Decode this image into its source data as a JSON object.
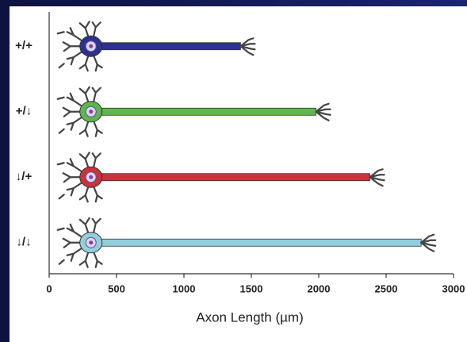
{
  "chart_data": {
    "type": "neuron-bar",
    "categories": [
      "+/+",
      "+/↓",
      "↓/+",
      "↓/↓"
    ],
    "series": [
      {
        "name": null,
        "values": [
          1420,
          1980,
          2380,
          2760
        ],
        "colors": [
          "#2e3192",
          "#5cb84a",
          "#c9333b",
          "#92cfdc"
        ]
      }
    ],
    "xlabel": "Axon Length (µm)",
    "xlim": [
      0,
      3000
    ],
    "xticks": [
      0,
      500,
      1000,
      1500,
      2000,
      2500,
      3000
    ]
  }
}
